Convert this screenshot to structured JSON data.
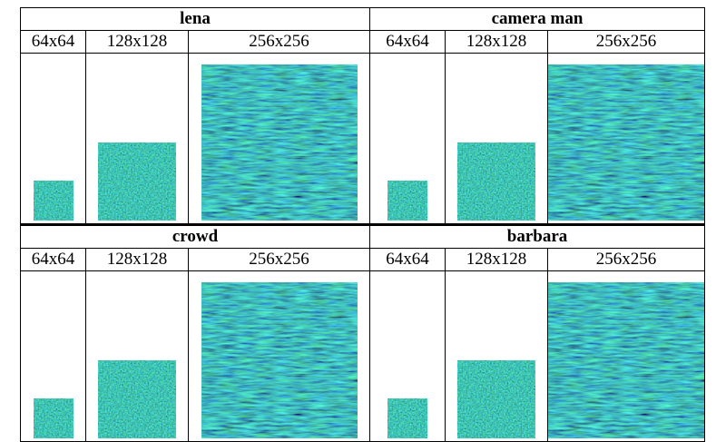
{
  "table": {
    "rows": [
      [
        {
          "title": "lena",
          "sizes": [
            "64x64",
            "128x128",
            "256x256"
          ]
        },
        {
          "title": "camera man",
          "sizes": [
            "64x64",
            "128x128",
            "256x256"
          ]
        }
      ],
      [
        {
          "title": "crowd",
          "sizes": [
            "64x64",
            "128x128",
            "256x256"
          ]
        },
        {
          "title": "barbara",
          "sizes": [
            "64x64",
            "128x128",
            "256x256"
          ]
        }
      ]
    ]
  }
}
